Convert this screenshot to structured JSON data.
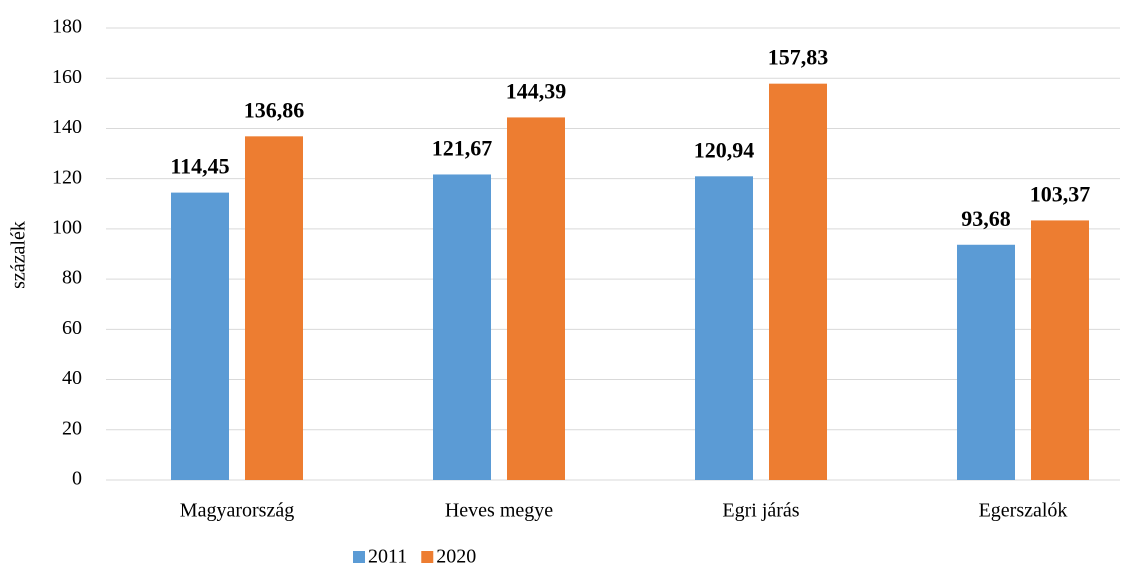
{
  "chart_data": {
    "type": "bar",
    "y_label": "százalék",
    "categories": [
      "Magyarország",
      "Heves megye",
      "Egri járás",
      "Egerszalók"
    ],
    "series": [
      {
        "name": "2011",
        "color": "#5b9bd5",
        "values": [
          114.45,
          121.67,
          120.94,
          93.68
        ],
        "value_labels": [
          "114,45",
          "121,67",
          "120,94",
          "93,68"
        ]
      },
      {
        "name": "2020",
        "color": "#ed7d31",
        "values": [
          136.86,
          144.39,
          157.83,
          103.37
        ],
        "value_labels": [
          "136,86",
          "144,39",
          "157,83",
          "103,37"
        ]
      }
    ],
    "ylim": [
      0,
      180
    ],
    "yticks": [
      0,
      20,
      40,
      60,
      80,
      100,
      120,
      140,
      160,
      180
    ],
    "grid": true,
    "legend": "bottom"
  }
}
